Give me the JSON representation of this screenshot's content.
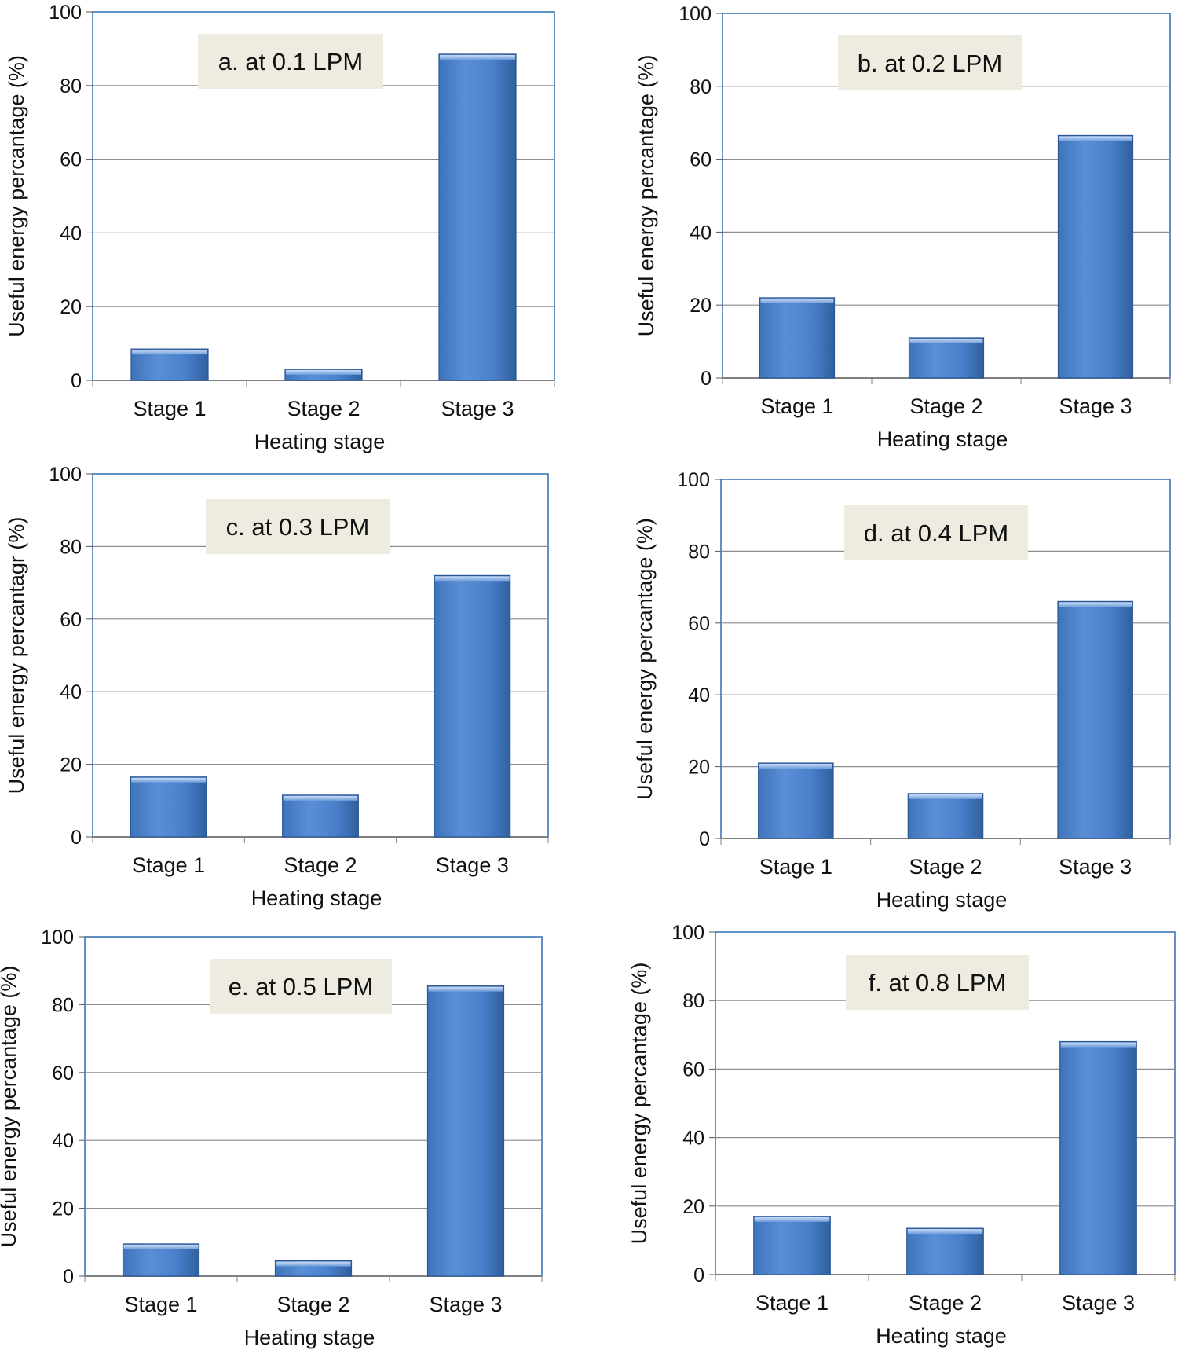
{
  "chart_data": [
    {
      "type": "bar",
      "title": "a. at 0.1 LPM",
      "categories": [
        "Stage 1",
        "Stage 2",
        "Stage 3"
      ],
      "values": [
        8.5,
        3,
        88.5
      ],
      "xlabel": "Heating stage",
      "ylabel": "Useful energy percantage (%)",
      "ylim": [
        0,
        100
      ],
      "yticks": [
        "0",
        "20",
        "40",
        "60",
        "80",
        "100"
      ],
      "grid": true
    },
    {
      "type": "bar",
      "title": "b. at 0.2 LPM",
      "categories": [
        "Stage 1",
        "Stage 2",
        "Stage 3"
      ],
      "values": [
        22,
        11,
        66.5
      ],
      "xlabel": "Heating stage",
      "ylabel": "Useful energy percantage  (%)",
      "ylim": [
        0,
        100
      ],
      "yticks": [
        "0",
        "20",
        "40",
        "60",
        "80",
        "100"
      ],
      "grid": true
    },
    {
      "type": "bar",
      "title": "c. at 0.3 LPM",
      "categories": [
        "Stage 1",
        "Stage 2",
        "Stage 3"
      ],
      "values": [
        16.5,
        11.5,
        72
      ],
      "xlabel": "Heating stage",
      "ylabel": "Useful energy percantagr (%)",
      "ylim": [
        0,
        100
      ],
      "yticks": [
        "0",
        "20",
        "40",
        "60",
        "80",
        "100"
      ],
      "grid": true
    },
    {
      "type": "bar",
      "title": "d. at 0.4 LPM",
      "categories": [
        "Stage 1",
        "Stage 2",
        "Stage 3"
      ],
      "values": [
        21,
        12.5,
        66
      ],
      "xlabel": "Heating stage",
      "ylabel": "Useful energy  percantage (%)",
      "ylim": [
        0,
        100
      ],
      "yticks": [
        "0",
        "20",
        "40",
        "60",
        "80",
        "100"
      ],
      "grid": true
    },
    {
      "type": "bar",
      "title": "e. at 0.5 LPM",
      "categories": [
        "Stage 1",
        "Stage 2",
        "Stage 3"
      ],
      "values": [
        9.5,
        4.5,
        85.5
      ],
      "xlabel": "Heating stage",
      "ylabel": "Useful energy percantage (%)",
      "ylim": [
        0,
        100
      ],
      "yticks": [
        "0",
        "20",
        "40",
        "60",
        "80",
        "100"
      ],
      "grid": true
    },
    {
      "type": "bar",
      "title": "f. at 0.8 LPM",
      "categories": [
        "Stage 1",
        "Stage 2",
        "Stage 3"
      ],
      "values": [
        17,
        13.5,
        68
      ],
      "xlabel": "Heating stage",
      "ylabel": "Useful energy percantage (%)",
      "ylim": [
        0,
        100
      ],
      "yticks": [
        "0",
        "20",
        "40",
        "60",
        "80",
        "100"
      ],
      "grid": true
    }
  ],
  "colors": {
    "bar_light": "#8fb4e6",
    "bar_mid": "#4a82cf",
    "bar_dark": "#2f5f9e",
    "frame": "#2e6db4",
    "grid": "#8c8c8c",
    "title_box": "#eeece1"
  }
}
